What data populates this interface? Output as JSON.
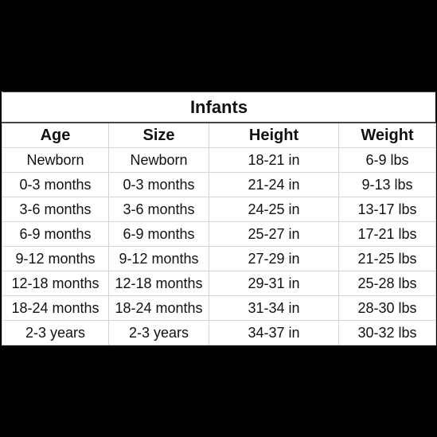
{
  "table": {
    "title": "Infants",
    "header": [
      "Age",
      "Size",
      "Height",
      "Weight"
    ],
    "rows": [
      [
        "Newborn",
        "Newborn",
        "18-21 in",
        "6-9 lbs"
      ],
      [
        "0-3 months",
        "0-3 months",
        "21-24 in",
        "9-13 lbs"
      ],
      [
        "3-6 months",
        "3-6 months",
        "24-25 in",
        "13-17 lbs"
      ],
      [
        "6-9 months",
        "6-9 months",
        "25-27 in",
        "17-21 lbs"
      ],
      [
        "9-12 months",
        "9-12 months",
        "27-29 in",
        "21-25 lbs"
      ],
      [
        "12-18 months",
        "12-18 months",
        "29-31 in",
        "25-28 lbs"
      ],
      [
        "18-24 months",
        "18-24 months",
        "31-34 in",
        "28-30 lbs"
      ],
      [
        "2-3 years",
        "2-3 years",
        "34-37 in",
        "30-32 lbs"
      ]
    ]
  }
}
